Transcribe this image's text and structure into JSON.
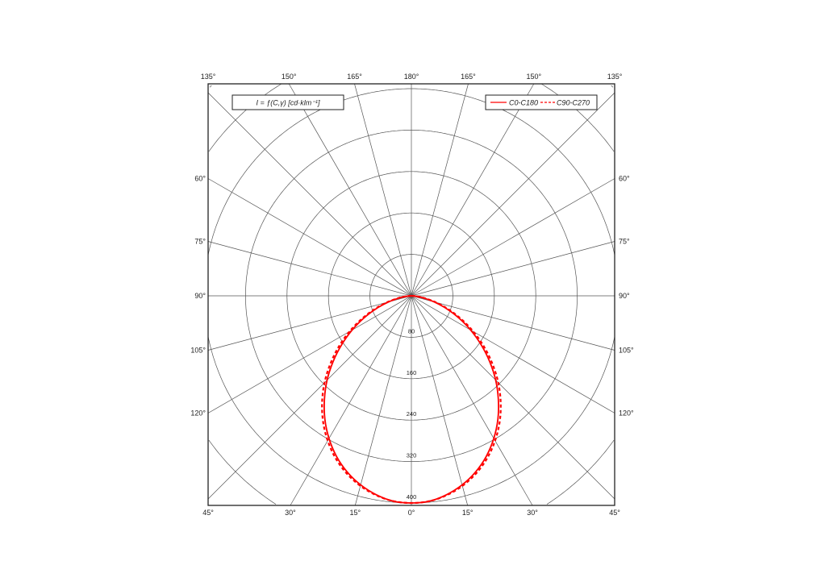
{
  "chart_data": {
    "type": "polar",
    "title_box": "I = ƒ(C,γ) [cd·klm⁻¹]",
    "radial_ticks": [
      80,
      160,
      240,
      320,
      400
    ],
    "radial_max_shown": 400,
    "angle_step_deg": 15,
    "angle_labels": {
      "top": [
        "135°",
        "150°",
        "165°",
        "180°",
        "165°",
        "150°",
        "135°"
      ],
      "bottom": [
        "45°",
        "30°",
        "15°",
        "0°",
        "15°",
        "30°",
        "45°"
      ],
      "left": [
        "120°",
        "105°",
        "90°",
        "75°",
        "60°"
      ],
      "right": [
        "120°",
        "105°",
        "90°",
        "75°",
        "60°"
      ]
    },
    "grid": true,
    "legend_placement": "top-right",
    "gamma_deg": [
      0,
      5,
      10,
      15,
      20,
      25,
      30,
      35,
      40,
      45,
      50,
      55,
      60,
      65,
      70,
      75,
      80,
      85,
      90
    ],
    "series": [
      {
        "name": "C0-C180",
        "style": "solid",
        "color": "#ff0000",
        "values": [
          400,
          398,
          390,
          378,
          362,
          342,
          318,
          291,
          261,
          230,
          197,
          164,
          132,
          101,
          72,
          46,
          24,
          8,
          0
        ]
      },
      {
        "name": "C90-C270",
        "style": "dashed",
        "color": "#ff0000",
        "values": [
          400,
          398,
          391,
          380,
          365,
          346,
          323,
          297,
          268,
          237,
          204,
          171,
          138,
          106,
          76,
          49,
          26,
          9,
          0
        ]
      }
    ]
  }
}
